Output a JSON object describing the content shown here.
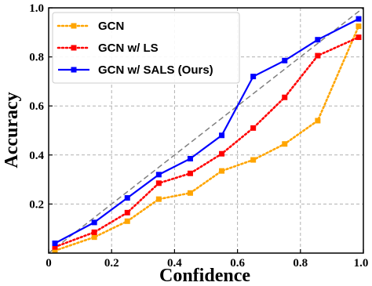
{
  "chart_data": {
    "type": "line",
    "xlabel": "Confidence",
    "ylabel": "Accuracy",
    "xlim": [
      0,
      1
    ],
    "ylim": [
      0,
      1
    ],
    "xticks": [
      "0",
      "0.2",
      "0.4",
      "0.6",
      "0.8",
      "1.0"
    ],
    "yticks": [
      "0.2",
      "0.4",
      "0.6",
      "0.8",
      "1.0"
    ],
    "grid": true,
    "legend_position": "top-left",
    "reference_line": {
      "x": [
        0,
        1
      ],
      "y": [
        0,
        1
      ],
      "color": "#808080",
      "style": "dashed"
    },
    "series": [
      {
        "name": "GCN",
        "color": "#FFA500",
        "style": "dotted",
        "marker": "square",
        "x": [
          0.02,
          0.145,
          0.25,
          0.35,
          0.45,
          0.55,
          0.65,
          0.75,
          0.855,
          0.985
        ],
        "y": [
          0.01,
          0.065,
          0.13,
          0.22,
          0.245,
          0.335,
          0.38,
          0.445,
          0.54,
          0.925
        ]
      },
      {
        "name": "GCN w/ LS",
        "color": "#FF0000",
        "style": "dotted",
        "marker": "square",
        "x": [
          0.02,
          0.145,
          0.25,
          0.35,
          0.45,
          0.55,
          0.65,
          0.75,
          0.855,
          0.985
        ],
        "y": [
          0.025,
          0.085,
          0.165,
          0.285,
          0.325,
          0.405,
          0.51,
          0.635,
          0.805,
          0.88
        ]
      },
      {
        "name": "GCN w/ SALS (Ours)",
        "color": "#0000FF",
        "style": "solid",
        "marker": "square",
        "x": [
          0.02,
          0.145,
          0.25,
          0.35,
          0.45,
          0.55,
          0.65,
          0.75,
          0.855,
          0.985
        ],
        "y": [
          0.04,
          0.125,
          0.225,
          0.32,
          0.385,
          0.48,
          0.72,
          0.785,
          0.87,
          0.955
        ]
      }
    ]
  }
}
